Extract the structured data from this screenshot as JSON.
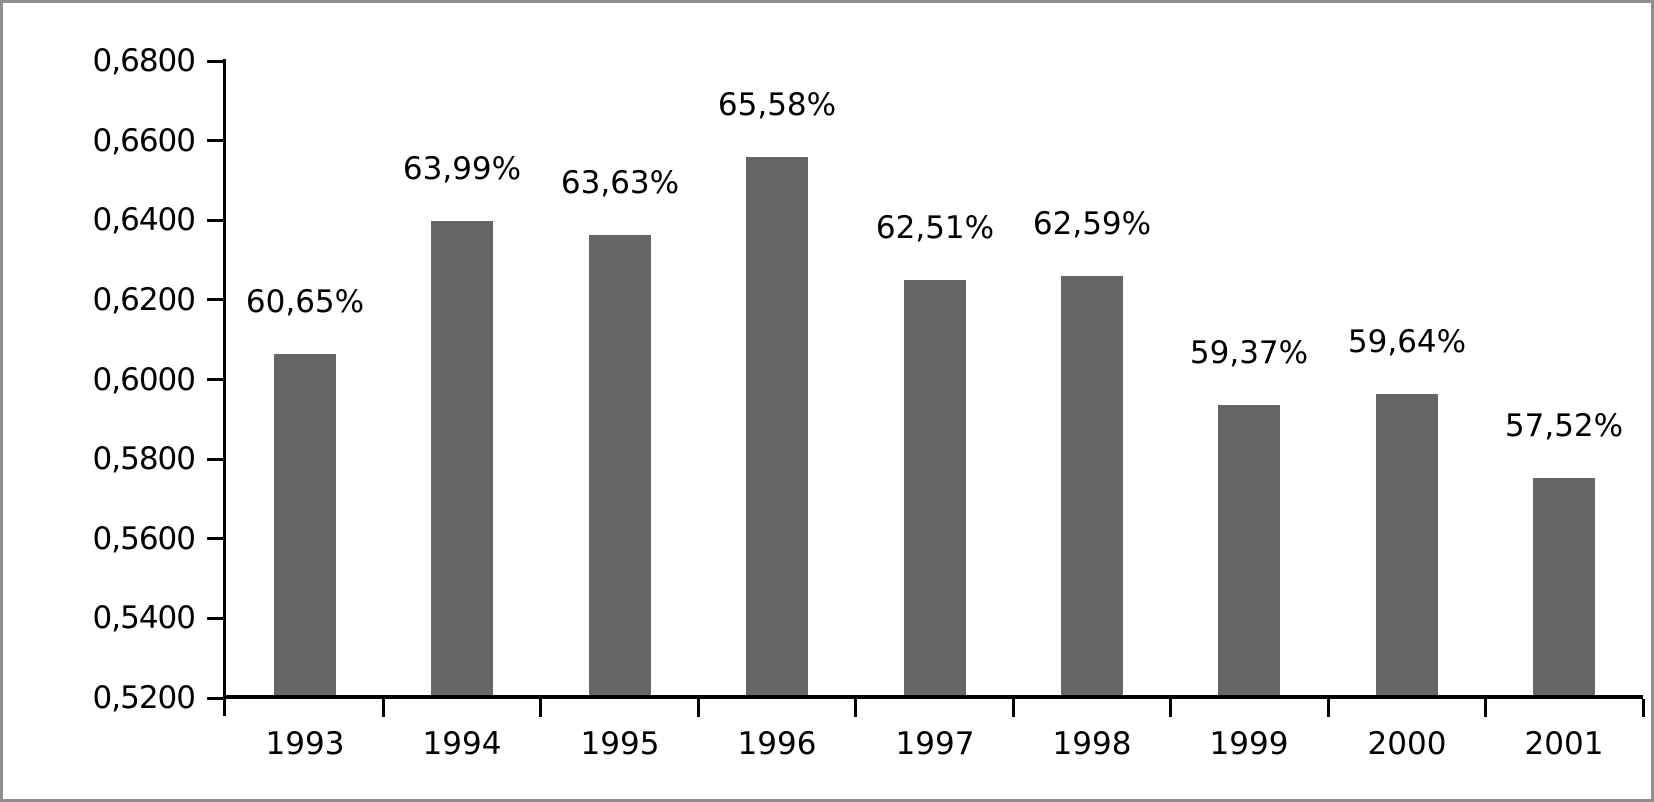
{
  "figure": {
    "background_color": "#ffffff",
    "border_color": "#8f8f8f"
  },
  "chart_data": {
    "type": "bar",
    "title": "",
    "xlabel": "",
    "ylabel": "",
    "categories": [
      "1993",
      "1994",
      "1995",
      "1996",
      "1997",
      "1998",
      "1999",
      "2000",
      "2001"
    ],
    "values": [
      0.6065,
      0.6399,
      0.6363,
      0.6558,
      0.6251,
      0.6259,
      0.5937,
      0.5964,
      0.5752
    ],
    "value_labels": [
      "60,65%",
      "63,99%",
      "63,63%",
      "65,58%",
      "62,51%",
      "62,59%",
      "59,37%",
      "59,64%",
      "57,52%"
    ],
    "y_tick_values": [
      0.52,
      0.54,
      0.56,
      0.58,
      0.6,
      0.62,
      0.64,
      0.66,
      0.68
    ],
    "y_tick_labels": [
      "0,5200",
      "0,5400",
      "0,5600",
      "0,5800",
      "0,6000",
      "0,6200",
      "0,6400",
      "0,6600",
      "0,6800"
    ],
    "ylim": [
      0.52,
      0.68
    ],
    "grid": false,
    "legend": "none",
    "bar_color": "#666666",
    "axis_color": "#000000",
    "text_color": "#000000"
  }
}
